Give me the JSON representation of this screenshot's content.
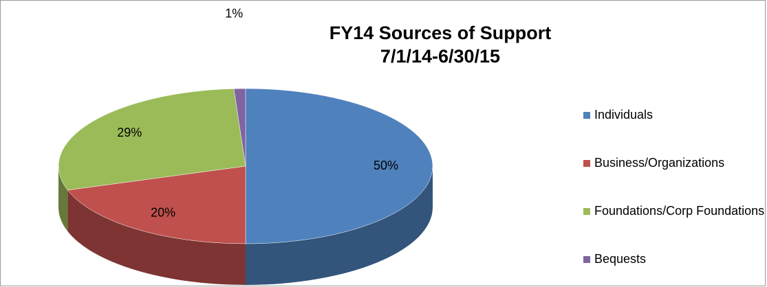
{
  "chart_data": {
    "type": "pie",
    "title": "FY14 Sources of Support",
    "subtitle": "7/1/14-6/30/15",
    "categories": [
      "Individuals",
      "Business/Organizations",
      "Foundations/Corp Foundations",
      "Bequests"
    ],
    "values": [
      50,
      20,
      29,
      1
    ],
    "value_labels": [
      "50%",
      "20%",
      "29%",
      "1%"
    ],
    "colors": [
      "#4f81bd",
      "#c0504d",
      "#9bbb59",
      "#8064a2"
    ],
    "legend": "right"
  }
}
